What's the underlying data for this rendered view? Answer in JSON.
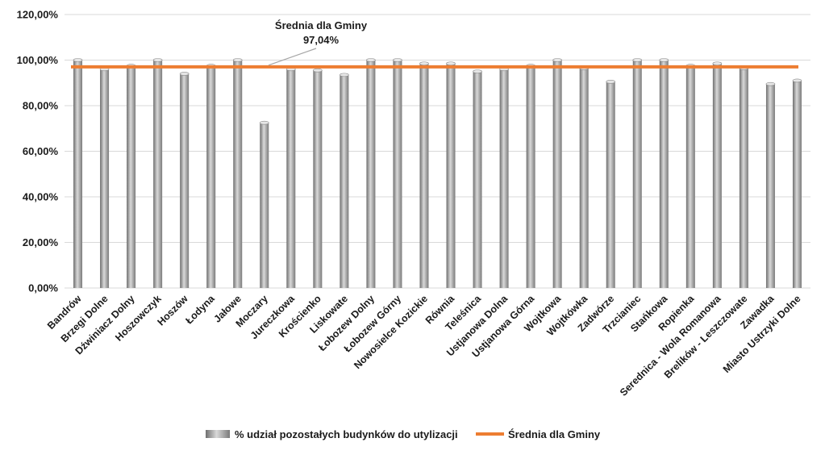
{
  "chart_data": {
    "type": "bar",
    "categories": [
      "Bandrów",
      "Brzegi Dolne",
      "Dźwiniacz Dolny",
      "Hoszowczyk",
      "Hoszów",
      "Łodyna",
      "Jałowe",
      "Moczary",
      "Jureczkowa",
      "Krościenko",
      "Liskowate",
      "Łobozew Dolny",
      "Łobozew Górny",
      "Nowosielce Kozickie",
      "Równia",
      "Teleśnica",
      "Ustjanowa Dolna",
      "Ustjanowa Górna",
      "Wojtkowa",
      "Wojtkówka",
      "Zadwórze",
      "Trzcianiec",
      "Stańkowa",
      "Ropienka",
      "Serednica - Wola Romanowa",
      "Brelików - Leszczowate",
      "Zawadka",
      "Miasto Ustrzyki Dolne"
    ],
    "series": [
      {
        "name": "% udział pozostałych budynków do utylizacji",
        "type": "bar",
        "color": "#a6a6a6",
        "values": [
          100,
          96,
          97.5,
          100,
          94,
          97.5,
          100,
          72.5,
          96,
          95.5,
          93.5,
          100,
          100,
          98.5,
          98.5,
          95,
          96,
          97.5,
          100,
          96.5,
          90.5,
          100,
          100,
          97.5,
          98.5,
          96.5,
          89.5,
          91
        ]
      },
      {
        "name": "Średnia dla Gminy",
        "type": "line",
        "color": "#ed7d31",
        "value": 97.04
      }
    ],
    "yticks": [
      "0,00%",
      "20,00%",
      "40,00%",
      "60,00%",
      "80,00%",
      "100,00%",
      "120,00%"
    ],
    "ylim": [
      0,
      120
    ],
    "grid": true,
    "legend_position": "bottom",
    "annotation": {
      "line1": "Średnia dla Gminy",
      "line2": "97,04%"
    },
    "title": "",
    "xlabel": "",
    "ylabel": ""
  }
}
